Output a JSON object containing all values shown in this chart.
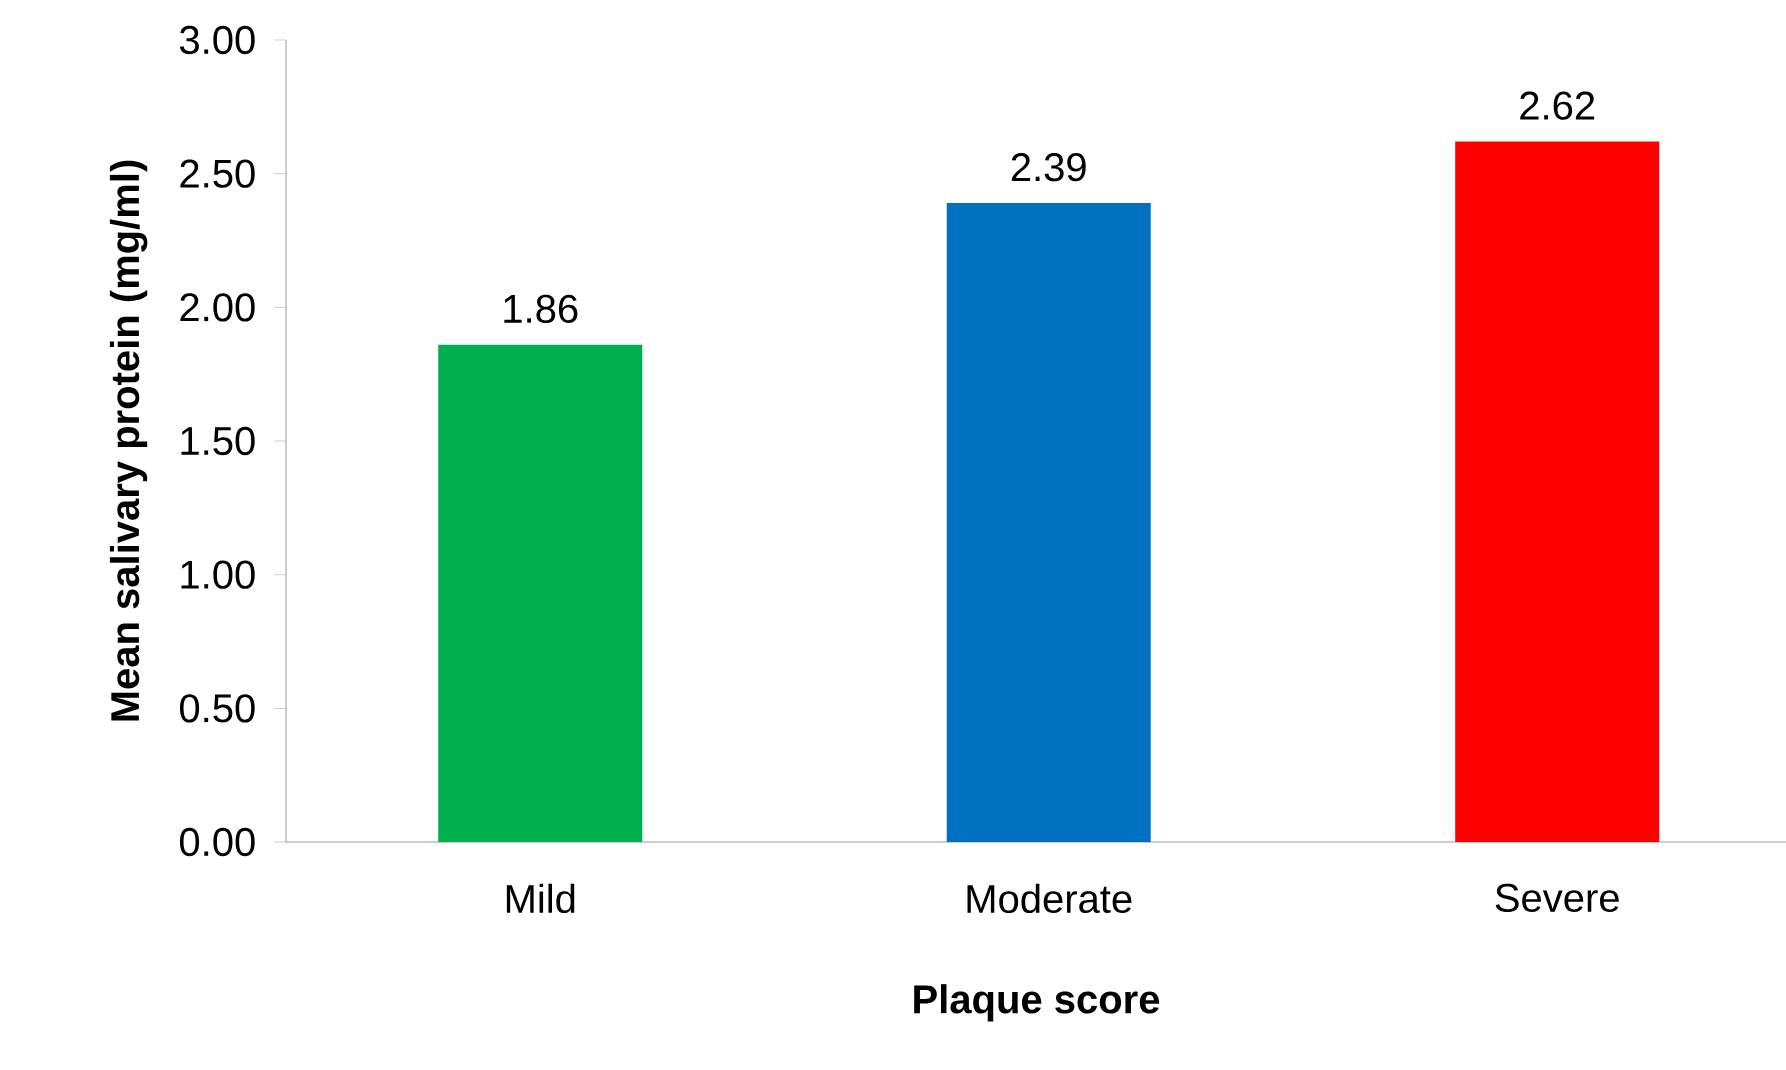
{
  "chart_data": {
    "type": "bar",
    "xlabel": "Plaque score",
    "ylabel": "Mean salivary protein (mg/ml)",
    "categories": [
      "Mild",
      "Moderate",
      "Severe"
    ],
    "values": [
      1.86,
      2.39,
      2.62
    ],
    "colors": [
      "#00b050",
      "#0070c0",
      "#ff0000"
    ],
    "ylim": [
      0,
      3
    ],
    "yticks": [
      {
        "value": 0,
        "label": "0.00"
      },
      {
        "value": 0.5,
        "label": "0.50"
      },
      {
        "value": 1,
        "label": "1.00"
      },
      {
        "value": 1.5,
        "label": "1.50"
      },
      {
        "value": 2,
        "label": "2.00"
      },
      {
        "value": 2.5,
        "label": "2.50"
      },
      {
        "value": 3,
        "label": "3.00"
      }
    ],
    "grid": false,
    "data_labels": true
  }
}
